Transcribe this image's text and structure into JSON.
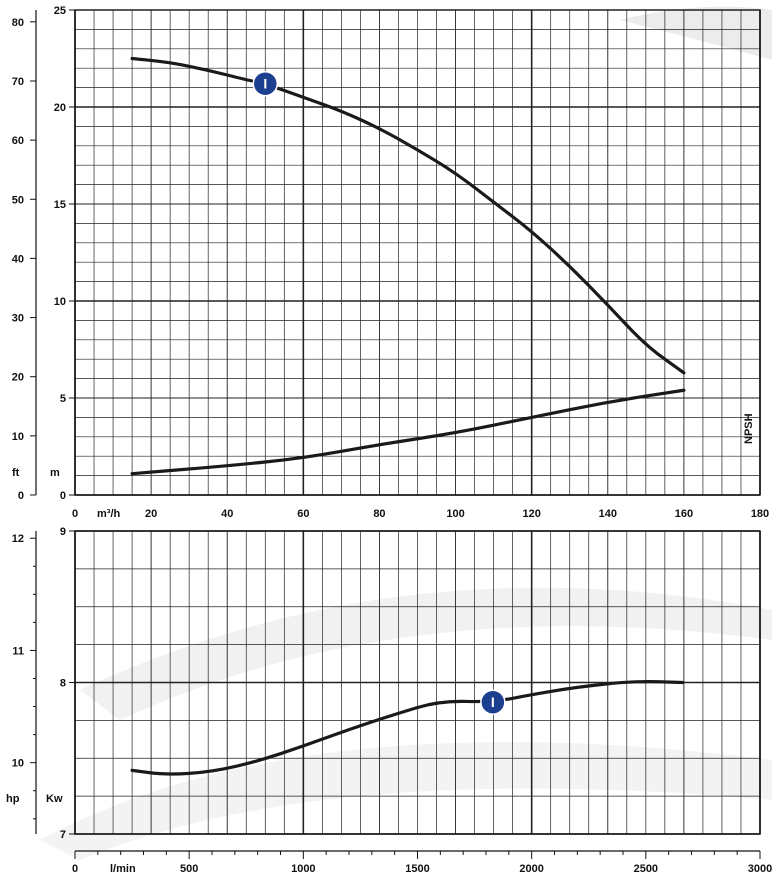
{
  "chart_data": [
    {
      "type": "line",
      "title": "",
      "x": {
        "primary_unit": "m³/h",
        "primary_range": [
          0,
          180
        ],
        "primary_ticks": [
          "0",
          "20",
          "40",
          "60",
          "80",
          "100",
          "120",
          "140",
          "160",
          "180"
        ]
      },
      "y": {
        "left_unit": "ft",
        "left_range": [
          0,
          82
        ],
        "left_ticks": [
          "0",
          "10",
          "20",
          "30",
          "40",
          "50",
          "60",
          "70",
          "80"
        ],
        "inner_unit": "m",
        "inner_range": [
          0,
          25
        ],
        "inner_ticks": [
          "0",
          "5",
          "10",
          "15",
          "20",
          "25"
        ]
      },
      "grid": true,
      "series": [
        {
          "name": "",
          "marker_label": "I",
          "marker_at": {
            "x": 50,
            "y": 21.2
          },
          "color": "#1a1a1a",
          "points": [
            [
              15,
              22.5
            ],
            [
              25,
              22.3
            ],
            [
              35,
              21.9
            ],
            [
              45,
              21.4
            ],
            [
              50,
              21.2
            ],
            [
              60,
              20.5
            ],
            [
              70,
              19.8
            ],
            [
              80,
              18.9
            ],
            [
              90,
              17.8
            ],
            [
              100,
              16.6
            ],
            [
              110,
              15.1
            ],
            [
              120,
              13.6
            ],
            [
              130,
              11.8
            ],
            [
              140,
              9.8
            ],
            [
              150,
              7.7
            ],
            [
              160,
              6.3
            ]
          ]
        },
        {
          "name": "NPSH",
          "color": "#1a1a1a",
          "points": [
            [
              15,
              1.1
            ],
            [
              40,
              1.5
            ],
            [
              60,
              1.9
            ],
            [
              80,
              2.6
            ],
            [
              100,
              3.2
            ],
            [
              120,
              4.0
            ],
            [
              140,
              4.8
            ],
            [
              160,
              5.4
            ]
          ]
        }
      ]
    },
    {
      "type": "line",
      "title": "",
      "x": {
        "primary_unit": "l/min",
        "primary_range": [
          0,
          3000
        ],
        "primary_ticks": [
          "0",
          "500",
          "1000",
          "1500",
          "2000",
          "2500",
          "3000"
        ]
      },
      "y": {
        "left_unit": "hp",
        "left_range": [
          9.4,
          12.1
        ],
        "left_ticks": [
          "10",
          "11",
          "12"
        ],
        "inner_unit": "Kw",
        "inner_range": [
          7,
          9
        ],
        "inner_ticks": [
          "7",
          "8",
          "9"
        ]
      },
      "grid": true,
      "series": [
        {
          "name": "",
          "marker_label": "I",
          "marker_at": {
            "x": 1830,
            "y": 7.87
          },
          "color": "#1a1a1a",
          "points": [
            [
              250,
              7.42
            ],
            [
              400,
              7.39
            ],
            [
              600,
              7.41
            ],
            [
              800,
              7.48
            ],
            [
              1000,
              7.58
            ],
            [
              1200,
              7.69
            ],
            [
              1400,
              7.79
            ],
            [
              1600,
              7.88
            ],
            [
              1830,
              7.87
            ],
            [
              2000,
              7.92
            ],
            [
              2200,
              7.97
            ],
            [
              2450,
              8.01
            ],
            [
              2660,
              8.0
            ]
          ]
        }
      ]
    }
  ]
}
